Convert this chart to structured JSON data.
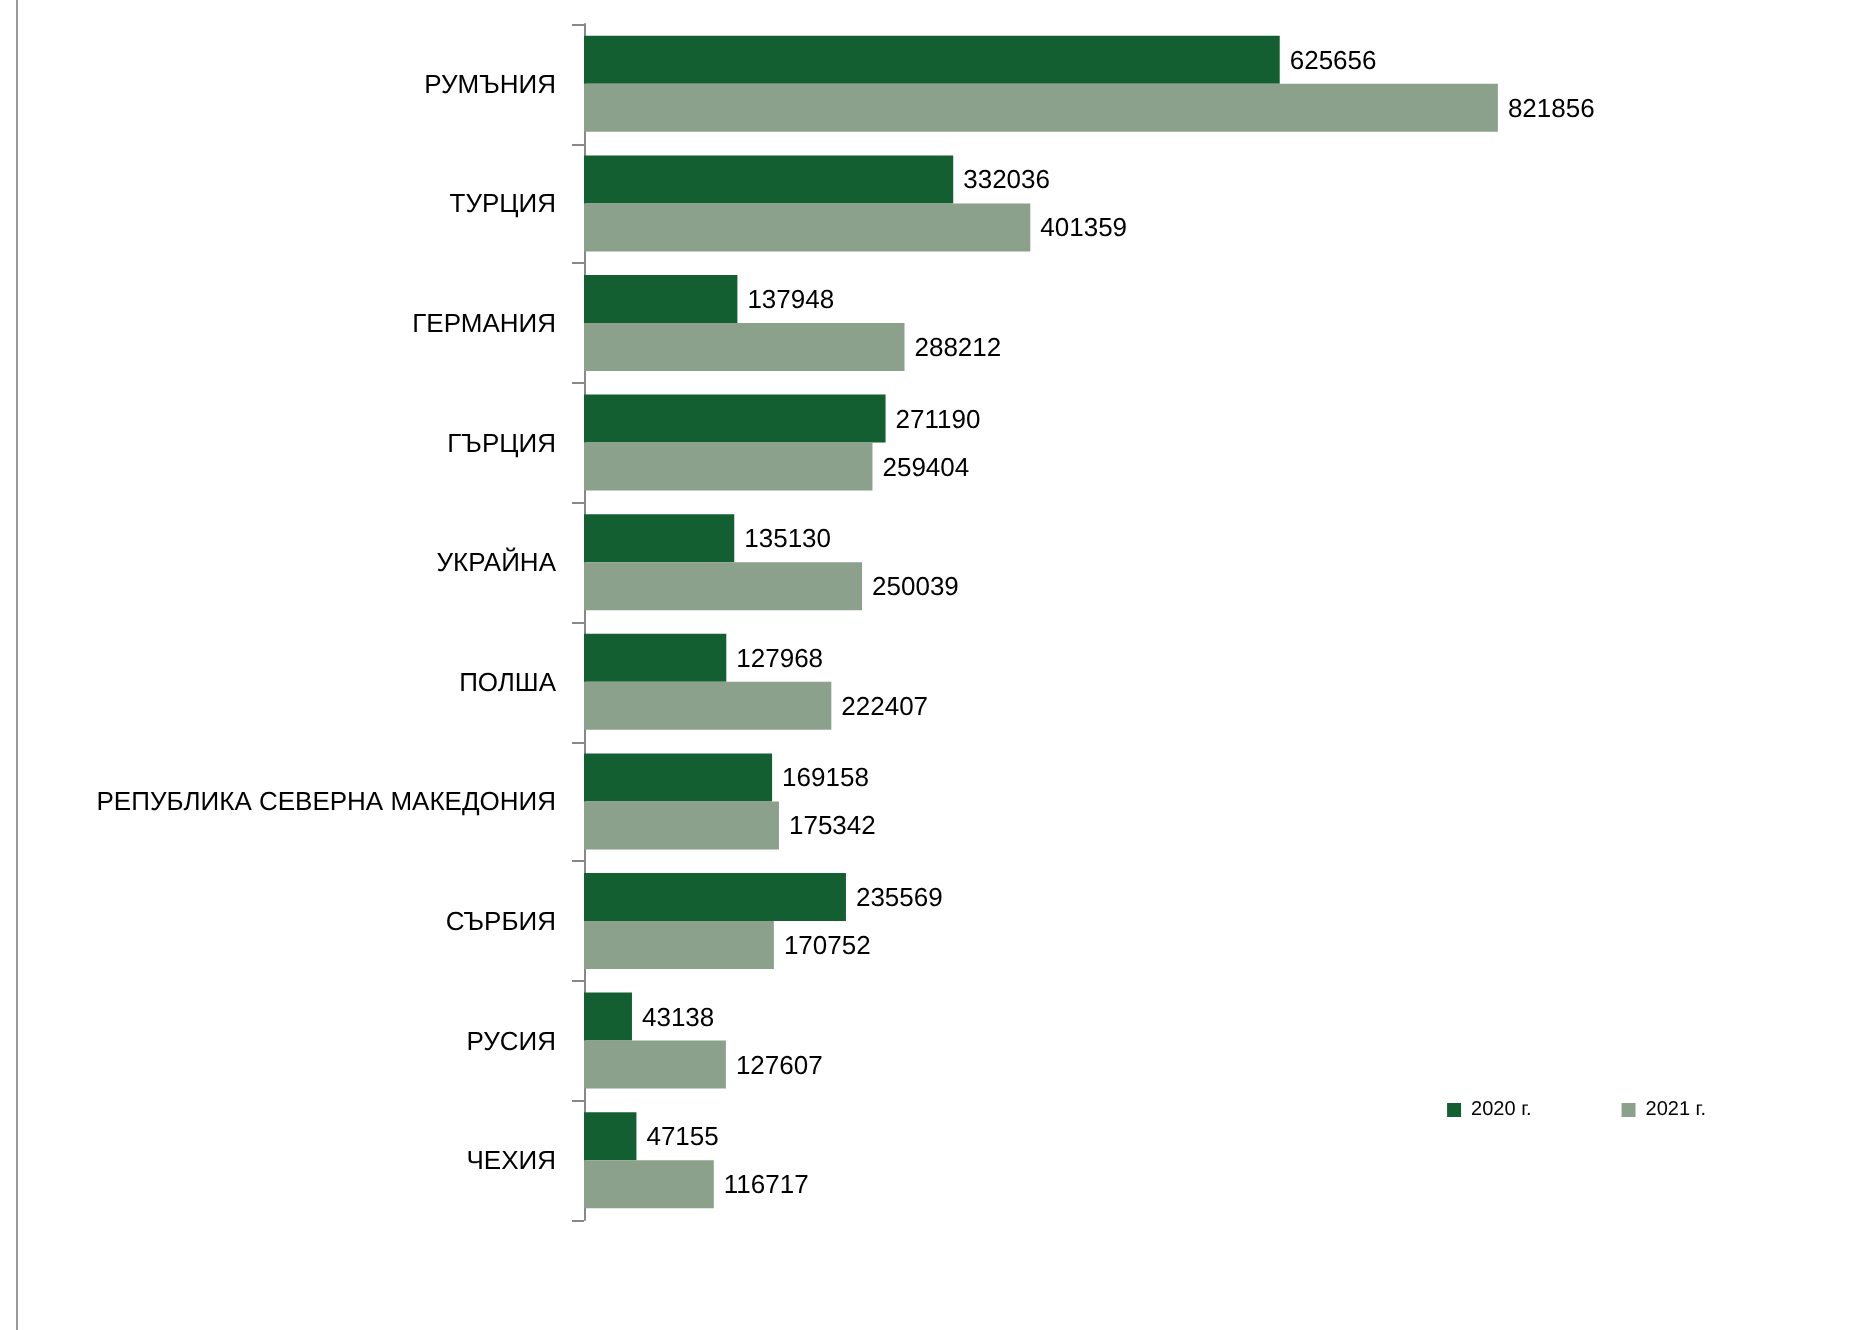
{
  "chart_data": {
    "type": "bar",
    "orientation": "horizontal",
    "data_labels": true,
    "legend": "bottom right",
    "categories": [
      "РУМЪНИЯ",
      "ТУРЦИЯ",
      "ГЕРМАНИЯ",
      "ГЪРЦИЯ",
      "УКРАЙНА",
      "ПОЛША",
      "РЕПУБЛИКА СЕВЕРНА МАКЕДОНИЯ",
      "СЪРБИЯ",
      "РУСИЯ",
      "ЧЕХИЯ"
    ],
    "series": [
      {
        "name": "2020 г.",
        "color": "#145f31",
        "values": [
          625656,
          332036,
          137948,
          271190,
          135130,
          127968,
          169158,
          235569,
          43138,
          47155
        ]
      },
      {
        "name": "2021 г.",
        "color": "#8ba18b",
        "values": [
          821856,
          401359,
          288212,
          259404,
          250039,
          222407,
          175342,
          170752,
          127607,
          116717
        ]
      }
    ]
  }
}
